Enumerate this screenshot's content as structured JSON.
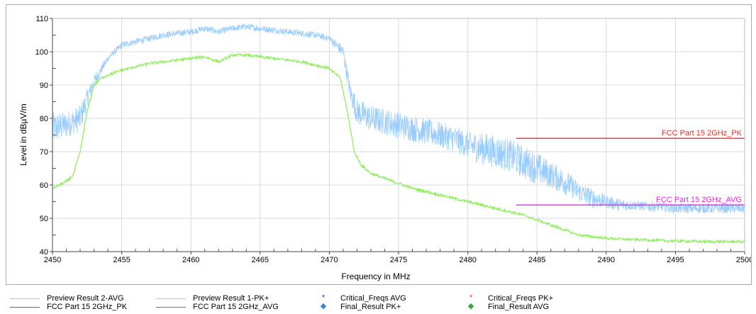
{
  "chart_data": {
    "type": "line",
    "title": "",
    "xlabel": "Frequency in MHz",
    "ylabel": "Level in dBµV/m",
    "xlim": [
      2450,
      2500
    ],
    "ylim": [
      40,
      110
    ],
    "x_ticks": [
      2450,
      2455,
      2460,
      2465,
      2470,
      2475,
      2480,
      2485,
      2490,
      2495,
      2500
    ],
    "y_ticks": [
      40,
      50,
      60,
      70,
      80,
      90,
      100,
      110
    ],
    "grid": true,
    "legend_position": "bottom",
    "series": [
      {
        "name": "Preview Result 1-PK+",
        "color": "#99ccff",
        "style": "noisy-trace",
        "x": [
          2450,
          2451,
          2452,
          2452.5,
          2453,
          2454,
          2455,
          2456,
          2457,
          2458,
          2459,
          2460,
          2461,
          2462,
          2463,
          2464,
          2465,
          2466,
          2467,
          2468,
          2469,
          2470,
          2471,
          2471.5,
          2472,
          2473,
          2474,
          2475,
          2476,
          2477,
          2478,
          2479,
          2480,
          2481,
          2482,
          2483,
          2484,
          2485,
          2486,
          2487,
          2488,
          2489,
          2490,
          2491,
          2492,
          2493,
          2494,
          2495,
          2496,
          2497,
          2498,
          2499,
          2500
        ],
        "values": [
          77,
          78,
          80,
          86,
          91,
          98,
          102,
          103,
          104,
          105,
          105.5,
          106,
          107,
          106,
          107,
          107.5,
          107,
          106.5,
          106,
          105.5,
          105,
          104,
          100,
          88,
          82,
          80,
          79,
          78,
          77,
          76,
          75,
          74,
          72,
          71,
          70,
          69,
          67,
          65,
          63,
          61,
          58,
          56,
          55,
          54,
          54,
          53.5,
          53.5,
          53,
          53,
          53,
          53,
          53,
          53
        ],
        "noise": [
          5,
          4,
          4,
          3,
          2,
          1,
          1,
          1,
          1,
          1,
          1,
          1,
          1,
          1,
          1,
          1,
          1,
          1,
          1,
          1,
          1,
          1,
          2,
          3,
          4,
          4,
          4,
          4,
          4,
          4,
          4,
          4,
          4,
          5,
          5,
          5,
          5,
          5,
          4,
          4,
          3,
          3,
          2,
          2,
          1.5,
          1.5,
          1.5,
          1.5,
          1.5,
          1.5,
          1.5,
          1.5,
          1.5
        ]
      },
      {
        "name": "Preview Result 2-AVG",
        "color": "#88ee55",
        "style": "trace",
        "x": [
          2450,
          2451,
          2451.5,
          2452,
          2452.5,
          2453,
          2453.5,
          2454,
          2455,
          2456,
          2457,
          2458,
          2459,
          2460,
          2461,
          2462,
          2463,
          2464,
          2465,
          2466,
          2467,
          2468,
          2469,
          2470,
          2470.8,
          2471.3,
          2471.8,
          2472.3,
          2473,
          2474,
          2475,
          2476,
          2477,
          2478,
          2479,
          2480,
          2481,
          2482,
          2483,
          2484,
          2485,
          2486,
          2487,
          2488,
          2489,
          2490,
          2491,
          2492,
          2493,
          2494,
          2495,
          2496,
          2497,
          2498,
          2499,
          2500
        ],
        "values": [
          59,
          61,
          63,
          70,
          82,
          90,
          92,
          93,
          94.5,
          95.5,
          96.5,
          97,
          97.5,
          98,
          98.5,
          97,
          99,
          99,
          98.5,
          98,
          97.5,
          97,
          96,
          95,
          92,
          82,
          70,
          66,
          63.5,
          62,
          60.5,
          59,
          58,
          57,
          56,
          55,
          54,
          53,
          52,
          51,
          49.5,
          48,
          46.5,
          45,
          44.5,
          44,
          43.8,
          43.6,
          43.5,
          43.3,
          43.2,
          43.1,
          43,
          43,
          43,
          43
        ],
        "noise": 0.4
      }
    ],
    "limit_lines": [
      {
        "name": "FCC Part 15 2GHz_PK",
        "label": "FCC Part 15 2GHz_PK",
        "x_start": 2483.5,
        "x_end": 2500,
        "value": 74,
        "color": "#e8302e"
      },
      {
        "name": "FCC Part 15 2GHz_AVG",
        "label": "FCC Part 15 2GHz_AVG",
        "x_start": 2483.5,
        "x_end": 2500,
        "value": 54,
        "color": "#ee22ee"
      }
    ],
    "legend": [
      {
        "label": "Preview Result 2-AVG",
        "kind": "line",
        "color": "#88ee55"
      },
      {
        "label": "Preview Result 1-PK+",
        "kind": "line",
        "color": "#99ccff"
      },
      {
        "label": "Critical_Freqs AVG",
        "kind": "glyph",
        "glyph": "*",
        "color": "#2222cc"
      },
      {
        "label": "Critical_Freqs PK+",
        "kind": "glyph",
        "glyph": "*",
        "color": "#e8302e"
      },
      {
        "label": "FCC Part 15 2GHz_PK",
        "kind": "line",
        "color": "#e8302e"
      },
      {
        "label": "FCC Part 15 2GHz_AVG",
        "kind": "line",
        "color": "#ee22ee"
      },
      {
        "label": "Final_Result PK+",
        "kind": "glyph",
        "glyph": "◆",
        "color": "#3388cc"
      },
      {
        "label": "Final_Result AVG",
        "kind": "glyph",
        "glyph": "◆",
        "color": "#33aa33"
      }
    ]
  }
}
